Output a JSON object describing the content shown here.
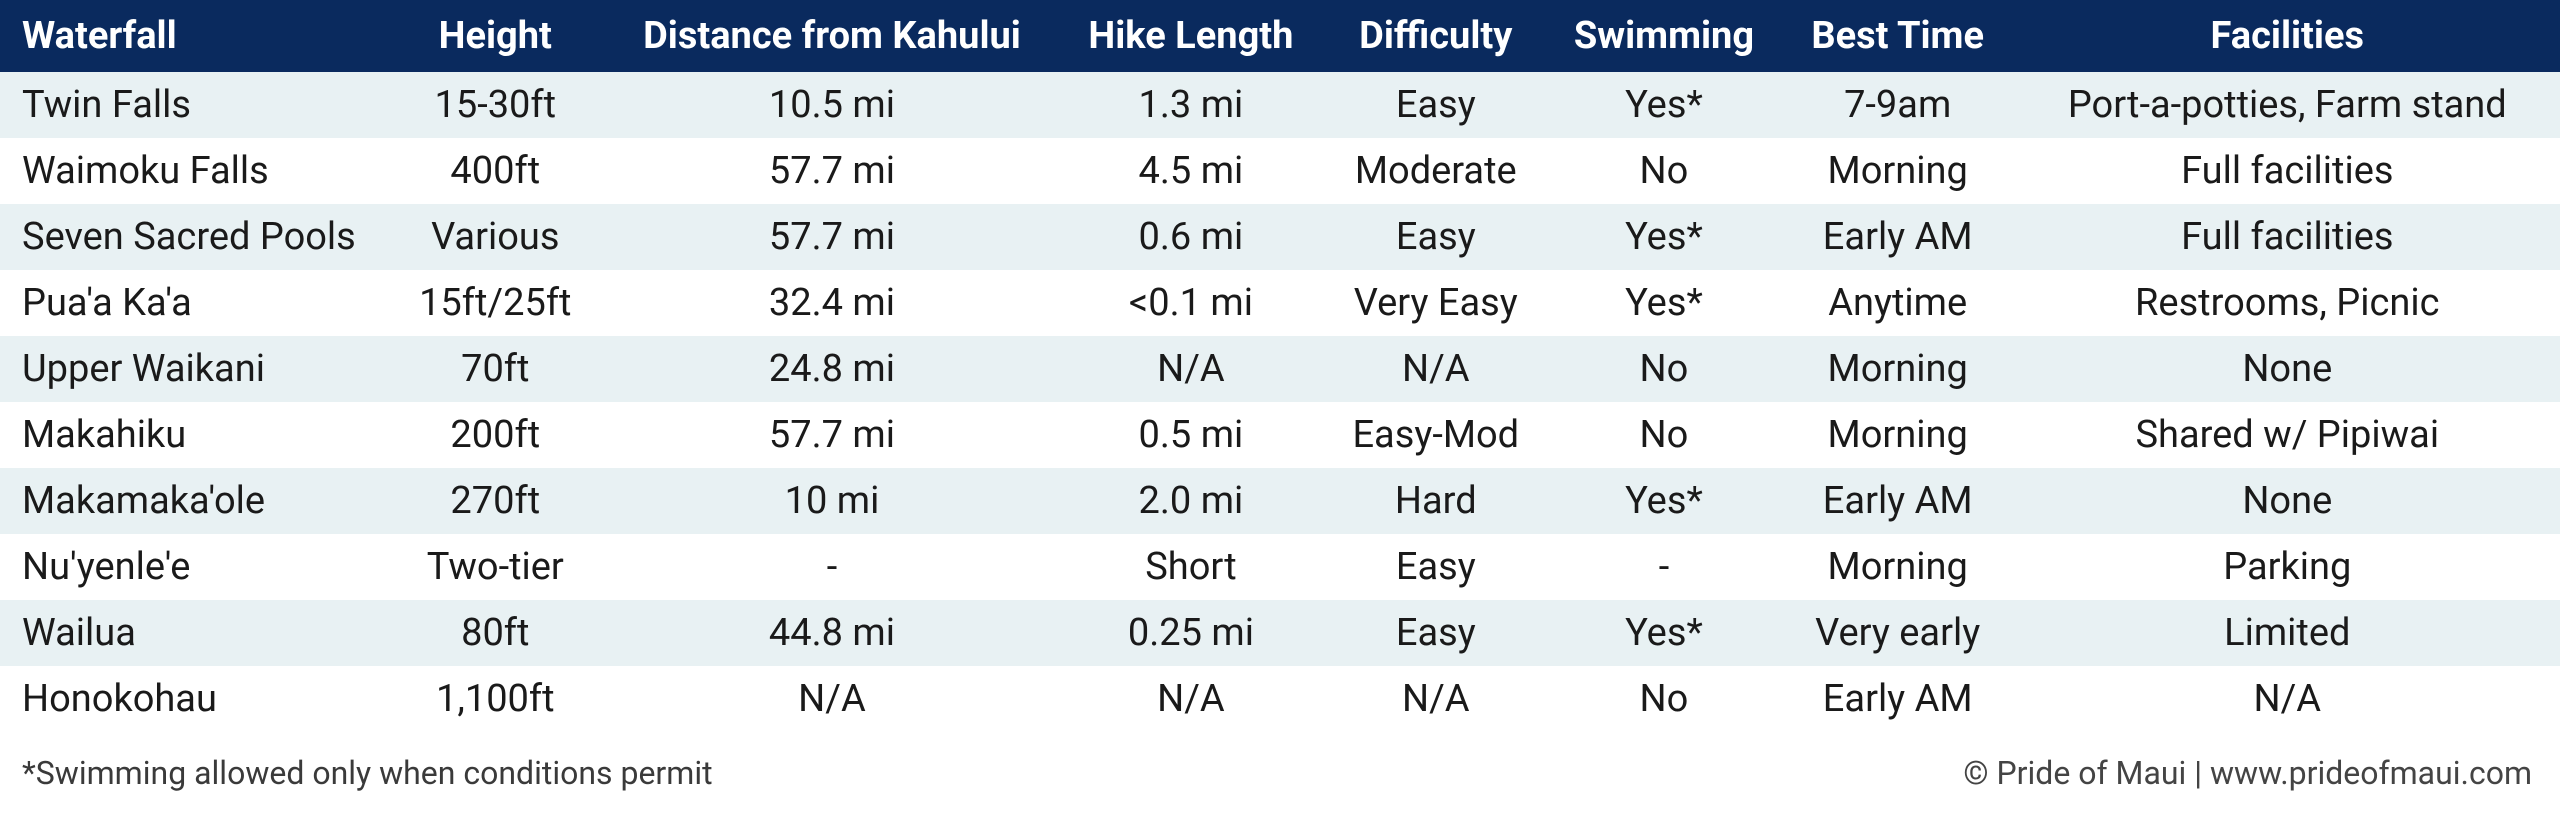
{
  "table": {
    "header_bg": "#0a2a5e",
    "header_color": "#ffffff",
    "row_odd_bg": "#e8f1f3",
    "row_even_bg": "#ffffff",
    "text_color": "#1a1a1a",
    "header_fontsize": 38,
    "cell_fontsize": 38,
    "columns": [
      "Waterfall",
      "Height",
      "Distance from Kahului",
      "Hike Length",
      "Difficulty",
      "Swimming",
      "Best Time",
      "Facilities"
    ],
    "column_align": [
      "left",
      "center",
      "center",
      "center",
      "center",
      "center",
      "center",
      "center"
    ],
    "rows": [
      [
        "Twin Falls",
        "15-30ft",
        "10.5 mi",
        "1.3 mi",
        "Easy",
        "Yes*",
        "7-9am",
        "Port-a-potties, Farm stand"
      ],
      [
        "Waimoku Falls",
        "400ft",
        "57.7 mi",
        "4.5 mi",
        "Moderate",
        "No",
        "Morning",
        "Full facilities"
      ],
      [
        "Seven Sacred Pools",
        "Various",
        "57.7 mi",
        "0.6 mi",
        "Easy",
        "Yes*",
        "Early AM",
        "Full facilities"
      ],
      [
        "Pua'a Ka'a",
        "15ft/25ft",
        "32.4 mi",
        "<0.1 mi",
        "Very Easy",
        "Yes*",
        "Anytime",
        "Restrooms, Picnic"
      ],
      [
        "Upper Waikani",
        "70ft",
        "24.8 mi",
        "N/A",
        "N/A",
        "No",
        "Morning",
        "None"
      ],
      [
        "Makahiku",
        "200ft",
        "57.7 mi",
        "0.5 mi",
        "Easy-Mod",
        "No",
        "Morning",
        "Shared w/ Pipiwai"
      ],
      [
        "Makamaka'ole",
        "270ft",
        "10 mi",
        "2.0 mi",
        "Hard",
        "Yes*",
        "Early AM",
        "None"
      ],
      [
        "Nu'yenle'e",
        "Two-tier",
        "-",
        "Short",
        "Easy",
        "-",
        "Morning",
        "Parking"
      ],
      [
        "Wailua",
        "80ft",
        "44.8 mi",
        "0.25 mi",
        "Easy",
        "Yes*",
        "Very early",
        "Limited"
      ],
      [
        "Honokohau",
        "1,100ft",
        "N/A",
        "N/A",
        "N/A",
        "No",
        "Early AM",
        "N/A"
      ]
    ]
  },
  "footer": {
    "note": "*Swimming allowed only when conditions permit",
    "credit": "© Pride of Maui  |  www.prideofmaui.com",
    "fontsize": 32,
    "color": "#3a3a3a"
  }
}
